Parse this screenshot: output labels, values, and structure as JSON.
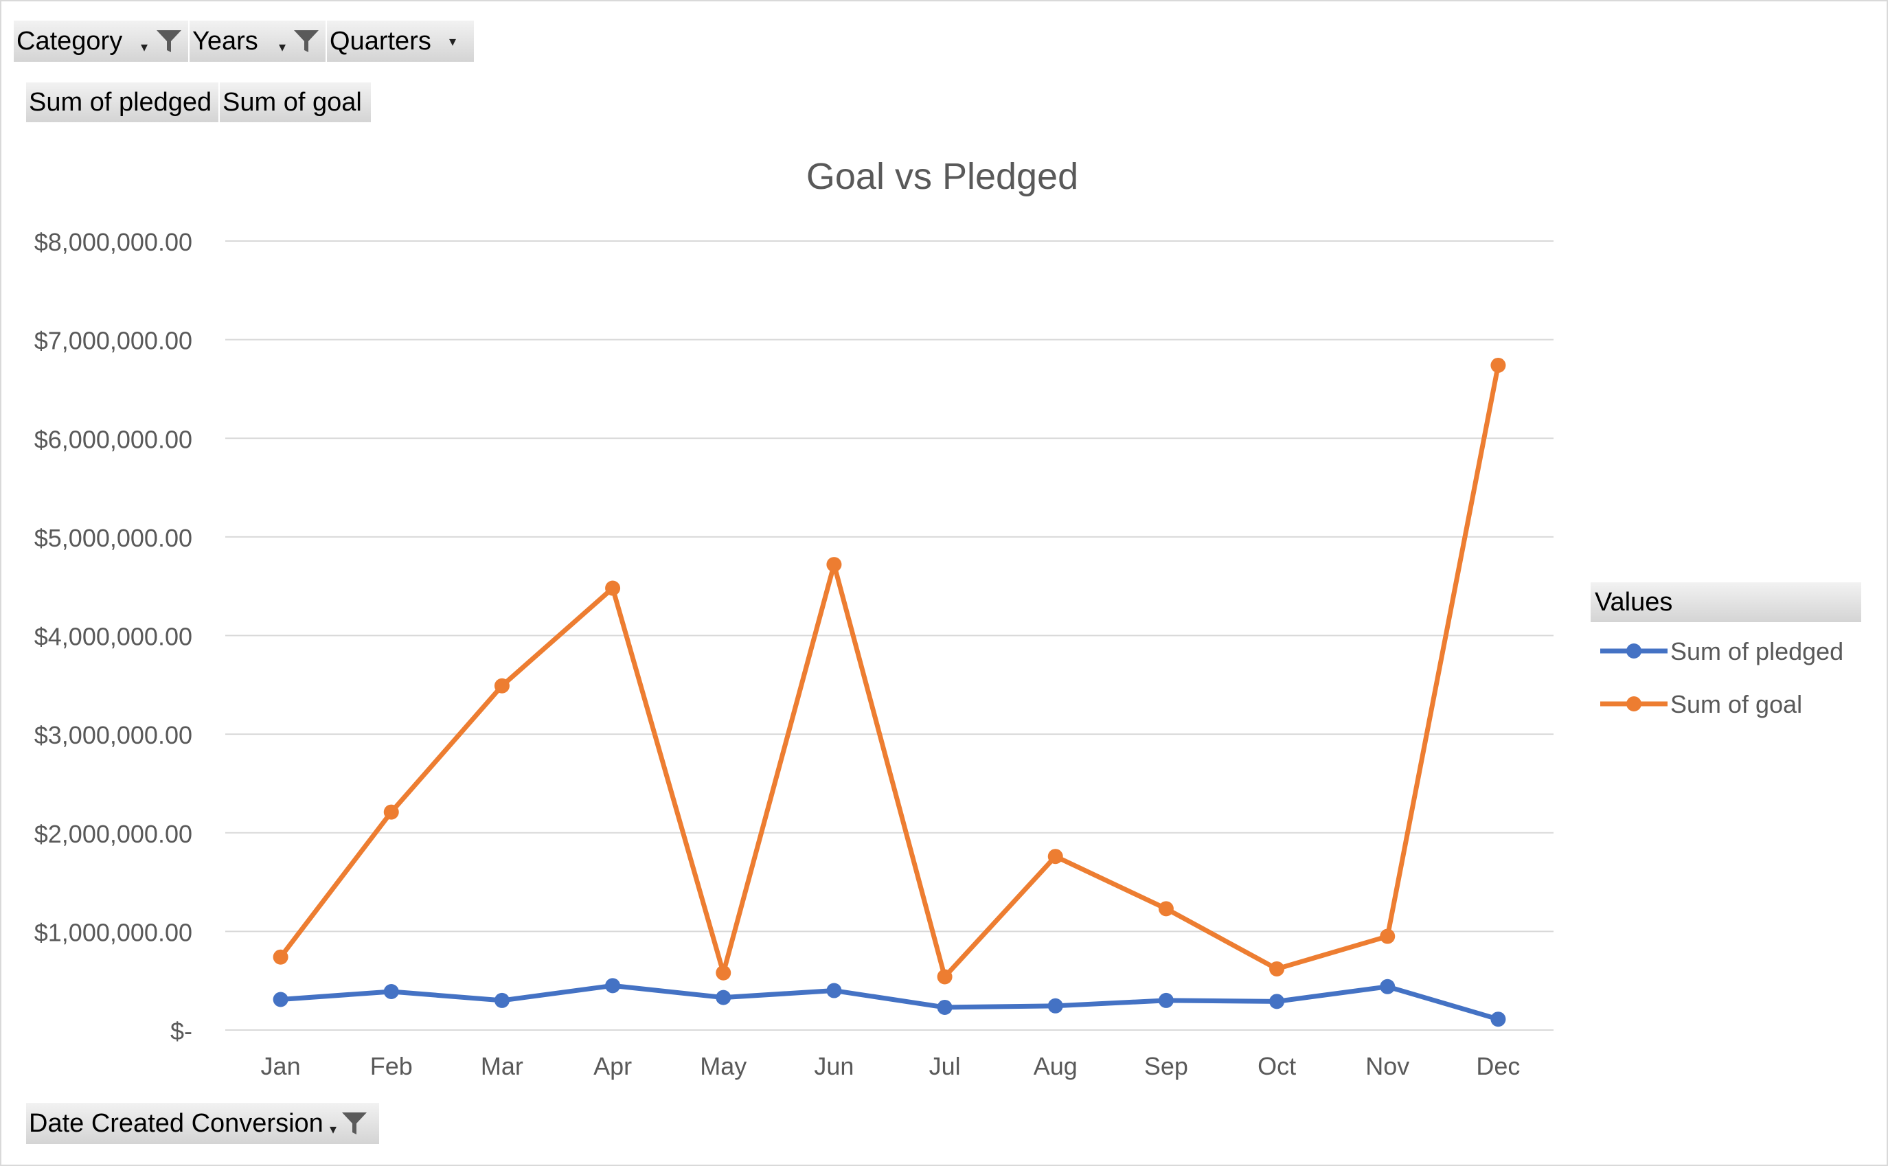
{
  "filters": {
    "category": "Category",
    "years": "Years",
    "quarters": "Quarters",
    "sum_pledged": "Sum of pledged",
    "sum_goal": "Sum of goal",
    "date_created": "Date Created Conversion"
  },
  "legend": {
    "title": "Values"
  },
  "icons": {
    "filter": "funnel-icon",
    "dropdown": "dropdown-arrow-icon"
  },
  "chart_data": {
    "type": "line",
    "title": "Goal vs Pledged",
    "xlabel": "",
    "ylabel": "",
    "categories": [
      "Jan",
      "Feb",
      "Mar",
      "Apr",
      "May",
      "Jun",
      "Jul",
      "Aug",
      "Sep",
      "Oct",
      "Nov",
      "Dec"
    ],
    "ylim": [
      0,
      8000000
    ],
    "y_ticks": [
      {
        "value": 0,
        "label": "$-"
      },
      {
        "value": 1000000,
        "label": "$1,000,000.00"
      },
      {
        "value": 2000000,
        "label": "$2,000,000.00"
      },
      {
        "value": 3000000,
        "label": "$3,000,000.00"
      },
      {
        "value": 4000000,
        "label": "$4,000,000.00"
      },
      {
        "value": 5000000,
        "label": "$5,000,000.00"
      },
      {
        "value": 6000000,
        "label": "$6,000,000.00"
      },
      {
        "value": 7000000,
        "label": "$7,000,000.00"
      },
      {
        "value": 8000000,
        "label": "$8,000,000.00"
      }
    ],
    "grid": true,
    "legend_position": "right",
    "series": [
      {
        "name": "Sum of pledged",
        "color": "#4472C4",
        "values": [
          310000,
          390000,
          300000,
          450000,
          330000,
          400000,
          230000,
          245000,
          300000,
          290000,
          440000,
          110000
        ]
      },
      {
        "name": "Sum of goal",
        "color": "#ED7D31",
        "values": [
          740000,
          2210000,
          3490000,
          4480000,
          580000,
          4720000,
          540000,
          1760000,
          1230000,
          620000,
          950000,
          6740000
        ]
      }
    ]
  }
}
